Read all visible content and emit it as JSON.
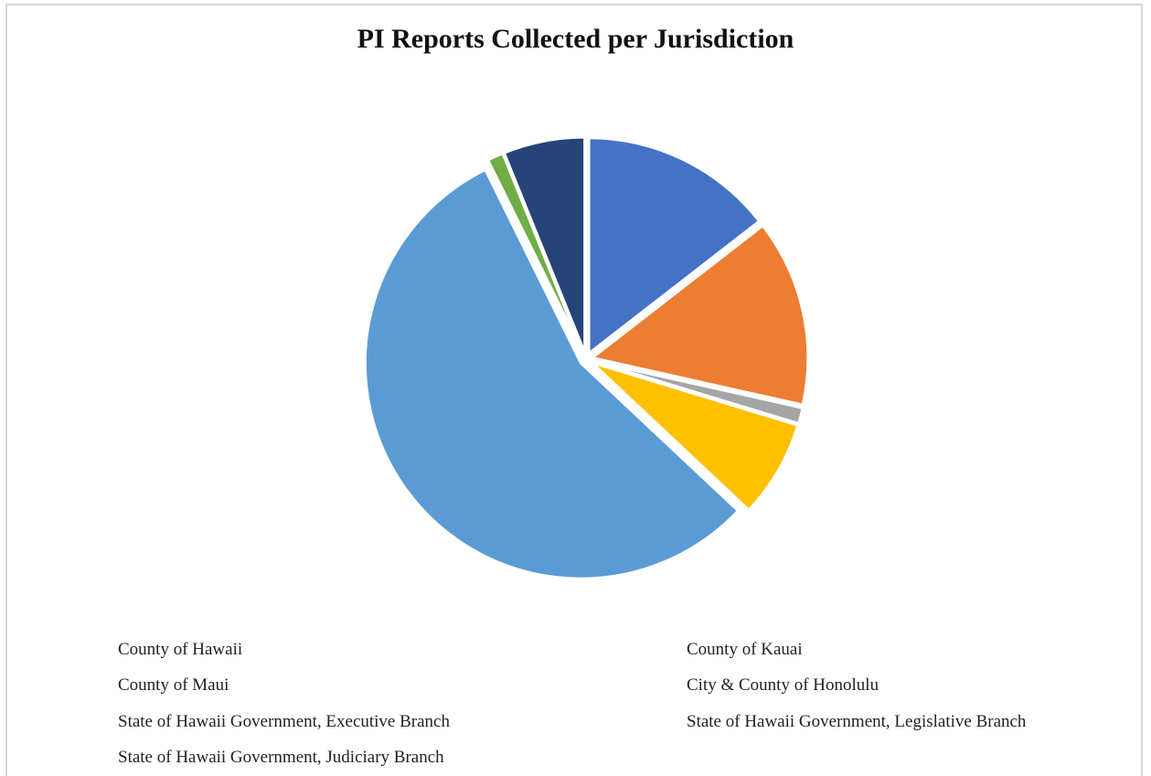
{
  "chart_data": {
    "type": "pie",
    "title": "PI Reports Collected per Jurisdiction",
    "slices": [
      {
        "label": "County of Hawaii",
        "value": 14.5,
        "color": "#4472C4"
      },
      {
        "label": "County of Kauai",
        "value": 14.0,
        "color": "#ED7D31"
      },
      {
        "label": "County of Maui",
        "value": 1.2,
        "color": "#A5A5A5"
      },
      {
        "label": "City & County of Honolulu",
        "value": 7.3,
        "color": "#FFC000"
      },
      {
        "label": "State of Hawaii Government, Executive Branch",
        "value": 55.7,
        "color": "#5B9BD5"
      },
      {
        "label": "State of Hawaii Government, Legislative Branch",
        "value": 1.2,
        "color": "#70AD47"
      },
      {
        "label": "State of Hawaii Government, Judiciary Branch",
        "value": 6.1,
        "color": "#264478"
      }
    ],
    "legend": {
      "placement": "bottom",
      "columns": 2,
      "shows_color_markers": false
    }
  }
}
